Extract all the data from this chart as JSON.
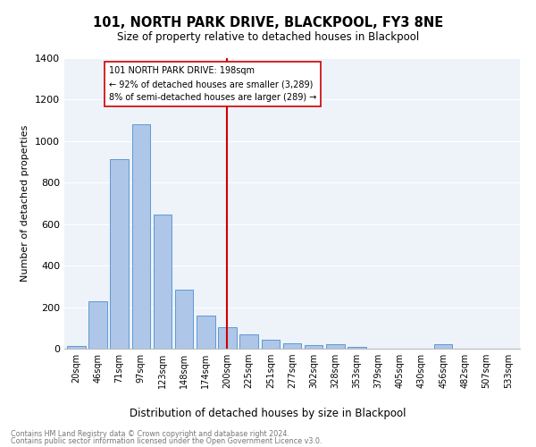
{
  "title": "101, NORTH PARK DRIVE, BLACKPOOL, FY3 8NE",
  "subtitle": "Size of property relative to detached houses in Blackpool",
  "xlabel": "Distribution of detached houses by size in Blackpool",
  "ylabel": "Number of detached properties",
  "categories": [
    "20sqm",
    "46sqm",
    "71sqm",
    "97sqm",
    "123sqm",
    "148sqm",
    "174sqm",
    "200sqm",
    "225sqm",
    "251sqm",
    "277sqm",
    "302sqm",
    "328sqm",
    "353sqm",
    "379sqm",
    "405sqm",
    "430sqm",
    "456sqm",
    "482sqm",
    "507sqm",
    "533sqm"
  ],
  "values": [
    15,
    228,
    915,
    1080,
    648,
    285,
    158,
    105,
    68,
    43,
    28,
    18,
    20,
    10,
    0,
    0,
    0,
    20,
    0,
    0,
    0
  ],
  "bar_color": "#aec6e8",
  "bar_edge_color": "#5b9bd5",
  "vline_x_index": 7,
  "vline_color": "#cc0000",
  "annotation_line1": "101 NORTH PARK DRIVE: 198sqm",
  "annotation_line2": "← 92% of detached houses are smaller (3,289)",
  "annotation_line3": "8% of semi-detached houses are larger (289) →",
  "ylim": [
    0,
    1400
  ],
  "yticks": [
    0,
    200,
    400,
    600,
    800,
    1000,
    1200,
    1400
  ],
  "background_color": "#eef2f9",
  "grid_color": "#ffffff",
  "footer_line1": "Contains HM Land Registry data © Crown copyright and database right 2024.",
  "footer_line2": "Contains public sector information licensed under the Open Government Licence v3.0."
}
